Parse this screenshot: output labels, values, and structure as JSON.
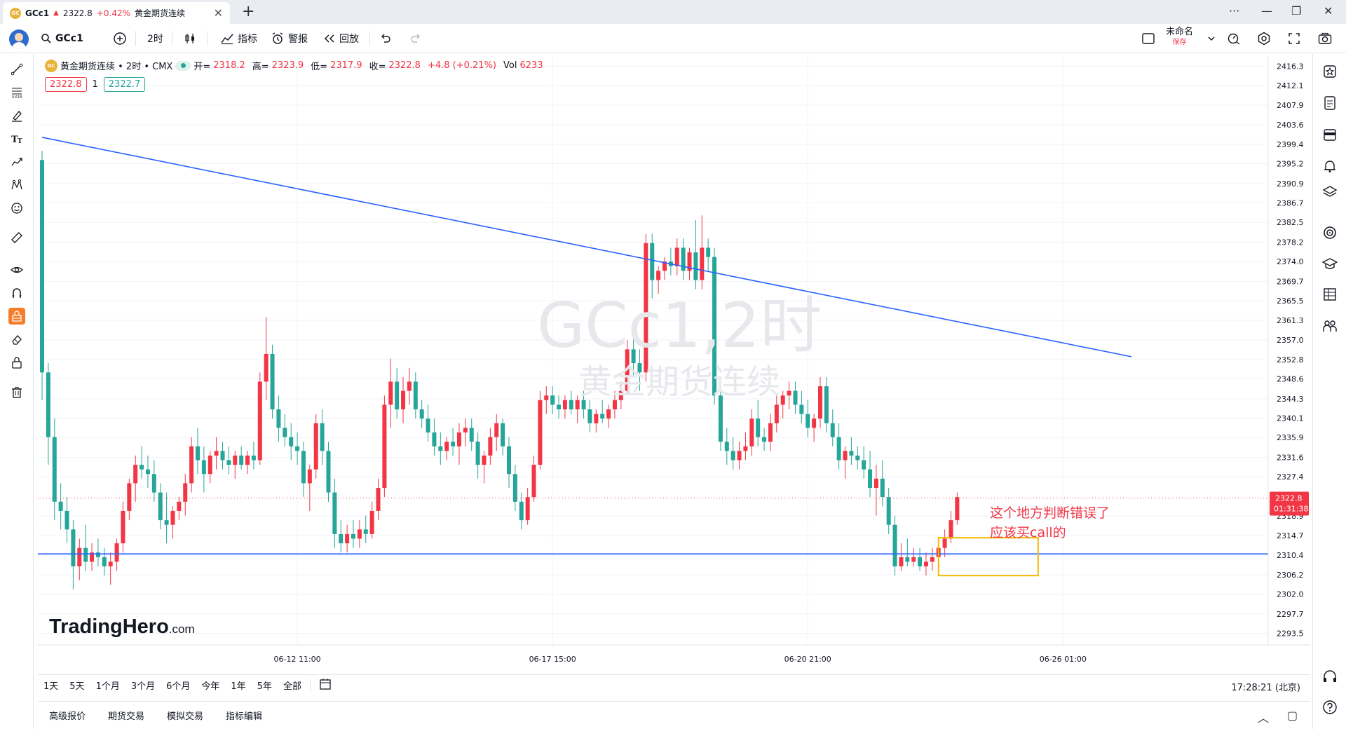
{
  "tab": {
    "symbol": "GCc1",
    "arrow": "▲",
    "price": "2322.8",
    "change": "+0.42%",
    "name": "黄金期货连续",
    "close": "✕",
    "new": "+"
  },
  "window": {
    "more": "···",
    "minimize": "—",
    "restore": "❐",
    "close": "✕"
  },
  "toolbar": {
    "symbol": "GCc1",
    "interval": "2时",
    "indicators": "指标",
    "alerts": "警报",
    "replay": "回放",
    "layout_name": "未命名",
    "layout_save": "保存"
  },
  "legend": {
    "logo": "GC",
    "title": "黄金期货连续 • 2时 • CMX",
    "open_label": "开=",
    "open": "2318.2",
    "high_label": "高=",
    "high": "2323.9",
    "low_label": "低=",
    "low": "2317.9",
    "close_label": "收=",
    "close": "2322.8",
    "change": "+4.8 (+0.21%)",
    "vol_label": "Vol",
    "vol": "6233"
  },
  "bidask": {
    "sell": "2322.8",
    "spread": "1",
    "buy": "2322.7"
  },
  "watermark": {
    "line1": "GCc1,2时",
    "line2": "黄金期货连续"
  },
  "brand": {
    "name": "TradingHero",
    "suffix": ".com"
  },
  "annotation": {
    "line1": "这个地方判断错误了",
    "line2": "应该买call的"
  },
  "range_buttons": [
    "1天",
    "5天",
    "1个月",
    "3个月",
    "6个月",
    "今年",
    "1年",
    "5年",
    "全部"
  ],
  "clock": "17:28:21 (北京)",
  "bottom_tabs": [
    "高级报价",
    "期货交易",
    "模拟交易",
    "指标编辑"
  ],
  "bottom_controls": {
    "collapse": "︿",
    "maximize": "▢"
  },
  "colors": {
    "up": "#f23645",
    "down": "#26a69a",
    "trendline": "#2962ff",
    "highlight_box": "#f5b800",
    "accent": "#f57c2b"
  },
  "chart_data": {
    "type": "candlestick",
    "symbol": "GCc1",
    "interval": "2时",
    "ylim": [
      2291.0,
      2418.5
    ],
    "price_ticks": [
      "2416.3",
      "2412.1",
      "2407.9",
      "2403.6",
      "2399.4",
      "2395.2",
      "2390.9",
      "2386.7",
      "2382.5",
      "2378.2",
      "2374.0",
      "2369.7",
      "2365.5",
      "2361.3",
      "2357.0",
      "2352.8",
      "2348.6",
      "2344.3",
      "2340.1",
      "2335.9",
      "2331.6",
      "2327.4",
      "2318.9",
      "2314.7",
      "2310.4",
      "2306.2",
      "2302.0",
      "2297.7",
      "2293.5"
    ],
    "time_ticks": [
      {
        "label": "06-12 11:00",
        "bar": 41
      },
      {
        "label": "06-17 15:00",
        "bar": 82
      },
      {
        "label": "06-20 21:00",
        "bar": 123
      },
      {
        "label": "06-26 01:00",
        "bar": 164
      }
    ],
    "last_price": "2322.8",
    "countdown": "01:31:38",
    "candles": [
      [
        2396,
        2398,
        2344,
        2350
      ],
      [
        2350,
        2352,
        2330,
        2336
      ],
      [
        2336,
        2340,
        2318,
        2322
      ],
      [
        2322,
        2326,
        2316,
        2320
      ],
      [
        2320,
        2323,
        2313,
        2316
      ],
      [
        2316,
        2318,
        2303,
        2308
      ],
      [
        2308,
        2314,
        2305,
        2312
      ],
      [
        2312,
        2317,
        2307,
        2309
      ],
      [
        2309,
        2313,
        2307,
        2311
      ],
      [
        2311,
        2314,
        2308,
        2310
      ],
      [
        2310,
        2312,
        2306,
        2308
      ],
      [
        2308,
        2311,
        2304,
        2309
      ],
      [
        2309,
        2314,
        2307,
        2313
      ],
      [
        2313,
        2322,
        2311,
        2320
      ],
      [
        2320,
        2327,
        2318,
        2326
      ],
      [
        2326,
        2332,
        2322,
        2330
      ],
      [
        2330,
        2334,
        2327,
        2329
      ],
      [
        2329,
        2332,
        2325,
        2328
      ],
      [
        2328,
        2331,
        2322,
        2324
      ],
      [
        2324,
        2326,
        2316,
        2318
      ],
      [
        2318,
        2324,
        2313,
        2317
      ],
      [
        2317,
        2321,
        2314,
        2320
      ],
      [
        2320,
        2323,
        2318,
        2322
      ],
      [
        2322,
        2328,
        2319,
        2326
      ],
      [
        2326,
        2336,
        2324,
        2334
      ],
      [
        2334,
        2338,
        2328,
        2331
      ],
      [
        2331,
        2334,
        2324,
        2328
      ],
      [
        2328,
        2333,
        2326,
        2332
      ],
      [
        2332,
        2336,
        2329,
        2333
      ],
      [
        2333,
        2335,
        2329,
        2331
      ],
      [
        2331,
        2334,
        2328,
        2330
      ],
      [
        2330,
        2333,
        2327,
        2332
      ],
      [
        2332,
        2334,
        2329,
        2330
      ],
      [
        2330,
        2333,
        2328,
        2332
      ],
      [
        2332,
        2335,
        2329,
        2331
      ],
      [
        2331,
        2350,
        2330,
        2348
      ],
      [
        2348,
        2362,
        2344,
        2354
      ],
      [
        2354,
        2356,
        2340,
        2342
      ],
      [
        2342,
        2345,
        2335,
        2338
      ],
      [
        2338,
        2341,
        2334,
        2336
      ],
      [
        2336,
        2339,
        2331,
        2334
      ],
      [
        2334,
        2337,
        2330,
        2333
      ],
      [
        2333,
        2335,
        2323,
        2326
      ],
      [
        2326,
        2330,
        2320,
        2329
      ],
      [
        2329,
        2341,
        2327,
        2339
      ],
      [
        2339,
        2342,
        2330,
        2333
      ],
      [
        2333,
        2335,
        2322,
        2324
      ],
      [
        2324,
        2327,
        2312,
        2315
      ],
      [
        2315,
        2318,
        2311,
        2313
      ],
      [
        2313,
        2317,
        2311,
        2315
      ],
      [
        2315,
        2318,
        2312,
        2314
      ],
      [
        2314,
        2318,
        2312,
        2316
      ],
      [
        2316,
        2319,
        2313,
        2315
      ],
      [
        2315,
        2322,
        2314,
        2320
      ],
      [
        2320,
        2327,
        2318,
        2325
      ],
      [
        2325,
        2345,
        2323,
        2343
      ],
      [
        2343,
        2353,
        2338,
        2348
      ],
      [
        2348,
        2351,
        2340,
        2342
      ],
      [
        2342,
        2349,
        2339,
        2346
      ],
      [
        2346,
        2351,
        2343,
        2348
      ],
      [
        2348,
        2350,
        2340,
        2342
      ],
      [
        2342,
        2344,
        2338,
        2340
      ],
      [
        2340,
        2343,
        2335,
        2337
      ],
      [
        2337,
        2340,
        2332,
        2334
      ],
      [
        2334,
        2337,
        2330,
        2333
      ],
      [
        2333,
        2336,
        2331,
        2335
      ],
      [
        2335,
        2338,
        2332,
        2334
      ],
      [
        2334,
        2339,
        2330,
        2337
      ],
      [
        2337,
        2340,
        2334,
        2338
      ],
      [
        2338,
        2340,
        2333,
        2335
      ],
      [
        2335,
        2337,
        2327,
        2330
      ],
      [
        2330,
        2333,
        2326,
        2332
      ],
      [
        2332,
        2338,
        2330,
        2336
      ],
      [
        2336,
        2341,
        2333,
        2339
      ],
      [
        2339,
        2340,
        2332,
        2334
      ],
      [
        2334,
        2336,
        2325,
        2328
      ],
      [
        2328,
        2330,
        2320,
        2322
      ],
      [
        2322,
        2324,
        2316,
        2318
      ],
      [
        2318,
        2325,
        2317,
        2323
      ],
      [
        2323,
        2332,
        2322,
        2330
      ],
      [
        2330,
        2346,
        2329,
        2344
      ],
      [
        2344,
        2347,
        2341,
        2345
      ],
      [
        2345,
        2347,
        2341,
        2343
      ],
      [
        2343,
        2345,
        2340,
        2342
      ],
      [
        2342,
        2345,
        2340,
        2344
      ],
      [
        2344,
        2346,
        2341,
        2342
      ],
      [
        2342,
        2345,
        2339,
        2344
      ],
      [
        2344,
        2346,
        2340,
        2342
      ],
      [
        2342,
        2344,
        2337,
        2339
      ],
      [
        2339,
        2342,
        2337,
        2341
      ],
      [
        2341,
        2344,
        2339,
        2340
      ],
      [
        2340,
        2343,
        2338,
        2342
      ],
      [
        2342,
        2346,
        2340,
        2344
      ],
      [
        2344,
        2348,
        2342,
        2346
      ],
      [
        2346,
        2357,
        2345,
        2355
      ],
      [
        2355,
        2360,
        2349,
        2352
      ],
      [
        2352,
        2355,
        2346,
        2350
      ],
      [
        2350,
        2380,
        2348,
        2378
      ],
      [
        2378,
        2380,
        2366,
        2370
      ],
      [
        2370,
        2373,
        2367,
        2372
      ],
      [
        2372,
        2375,
        2370,
        2374
      ],
      [
        2374,
        2377,
        2371,
        2373
      ],
      [
        2373,
        2379,
        2371,
        2377
      ],
      [
        2377,
        2379,
        2370,
        2372
      ],
      [
        2372,
        2377,
        2370,
        2376
      ],
      [
        2376,
        2383,
        2368,
        2370
      ],
      [
        2370,
        2384,
        2368,
        2377
      ],
      [
        2377,
        2379,
        2372,
        2375
      ],
      [
        2375,
        2377,
        2343,
        2345
      ],
      [
        2345,
        2347,
        2333,
        2335
      ],
      [
        2335,
        2338,
        2330,
        2333
      ],
      [
        2333,
        2336,
        2329,
        2331
      ],
      [
        2331,
        2335,
        2329,
        2333
      ],
      [
        2333,
        2337,
        2331,
        2334
      ],
      [
        2334,
        2342,
        2332,
        2340
      ],
      [
        2340,
        2344,
        2334,
        2336
      ],
      [
        2336,
        2338,
        2333,
        2335
      ],
      [
        2335,
        2341,
        2333,
        2339
      ],
      [
        2339,
        2345,
        2337,
        2343
      ],
      [
        2343,
        2346,
        2340,
        2345
      ],
      [
        2345,
        2348,
        2342,
        2346
      ],
      [
        2346,
        2348,
        2341,
        2343
      ],
      [
        2343,
        2346,
        2339,
        2341
      ],
      [
        2341,
        2344,
        2336,
        2338
      ],
      [
        2338,
        2341,
        2335,
        2340
      ],
      [
        2340,
        2349,
        2338,
        2347
      ],
      [
        2347,
        2349,
        2337,
        2339
      ],
      [
        2339,
        2342,
        2334,
        2336
      ],
      [
        2336,
        2339,
        2329,
        2331
      ],
      [
        2331,
        2334,
        2327,
        2333
      ],
      [
        2333,
        2336,
        2330,
        2332
      ],
      [
        2332,
        2334,
        2329,
        2331
      ],
      [
        2331,
        2334,
        2327,
        2329
      ],
      [
        2329,
        2333,
        2323,
        2325
      ],
      [
        2325,
        2330,
        2319,
        2327
      ],
      [
        2327,
        2331,
        2321,
        2323
      ],
      [
        2323,
        2325,
        2315,
        2317
      ],
      [
        2317,
        2319,
        2306,
        2308
      ],
      [
        2308,
        2313,
        2307,
        2310
      ],
      [
        2310,
        2314,
        2308,
        2309
      ],
      [
        2309,
        2312,
        2308,
        2310
      ],
      [
        2310,
        2312,
        2307,
        2308
      ],
      [
        2308,
        2311,
        2306,
        2309
      ],
      [
        2309,
        2312,
        2307,
        2310
      ],
      [
        2310,
        2313,
        2308,
        2312
      ],
      [
        2312,
        2316,
        2310,
        2314
      ],
      [
        2314,
        2320,
        2313,
        2318
      ],
      [
        2318,
        2324,
        2317,
        2323
      ]
    ],
    "trendlines": [
      {
        "name": "descending-resistance",
        "from": {
          "bar": 0,
          "price": 2400.9
        },
        "to": {
          "bar": 175,
          "price": 2353.4
        }
      },
      {
        "name": "horizontal-support",
        "price": 2310.7
      }
    ],
    "highlight_box": {
      "from_bar": 144,
      "to_bar": 160,
      "price_top": 2314.2,
      "price_bottom": 2306.0
    }
  }
}
